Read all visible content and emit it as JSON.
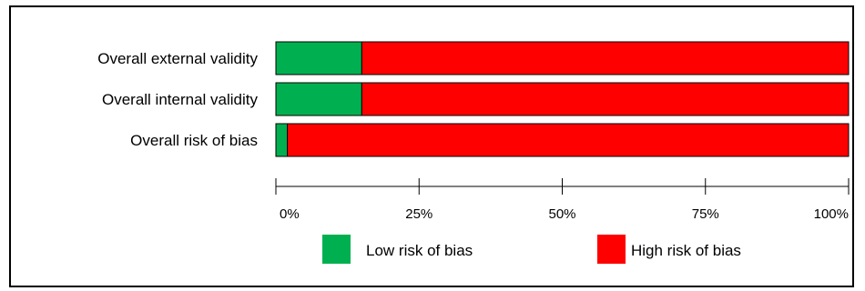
{
  "chart_data": {
    "type": "bar",
    "stacked": true,
    "orientation": "horizontal",
    "categories": [
      "Overall external validity",
      "Overall internal validity",
      "Overall risk of bias"
    ],
    "series": [
      {
        "name": "Low risk of bias",
        "color": "#00b050",
        "values": [
          15,
          15,
          2
        ]
      },
      {
        "name": "High risk of bias",
        "color": "#ff0000",
        "values": [
          85,
          85,
          98
        ]
      }
    ],
    "xlim": [
      0,
      100
    ],
    "xticks": [
      "0%",
      "25%",
      "50%",
      "75%",
      "100%"
    ],
    "legend_position": "bottom",
    "grid": false
  }
}
